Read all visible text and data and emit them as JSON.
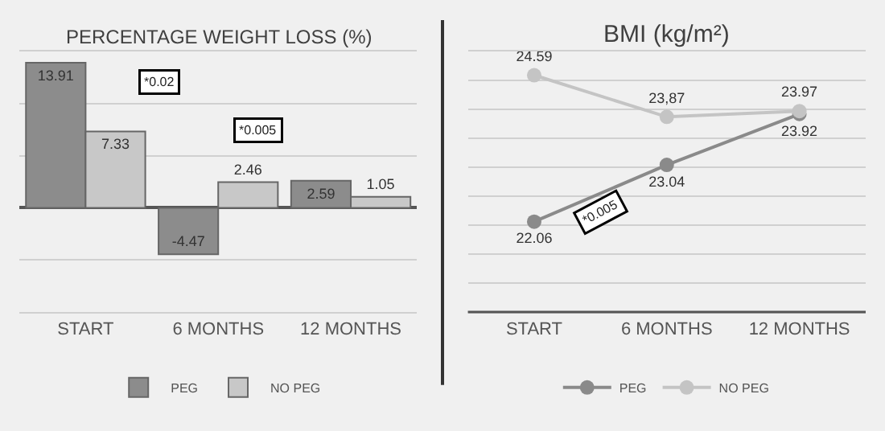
{
  "chart_data": [
    {
      "type": "bar",
      "title": "PERCENTAGE WEIGHT LOSS (%)",
      "categories": [
        "START",
        "6 MONTHS",
        "12 MONTHS"
      ],
      "series": [
        {
          "name": "PEG",
          "color": "#8c8c8c",
          "values": [
            13.91,
            -4.47,
            2.59
          ]
        },
        {
          "name": "NO PEG",
          "color": "#c8c8c8",
          "values": [
            7.33,
            2.46,
            1.05
          ]
        }
      ],
      "ylim": [
        -10,
        15
      ],
      "yticks": [
        {
          "value": -10,
          "label": null
        },
        {
          "value": -5,
          "label": null
        },
        {
          "value": 0,
          "label": null
        },
        {
          "value": 5,
          "label": null
        },
        {
          "value": 10,
          "label": null
        },
        {
          "value": 15,
          "label": null
        }
      ],
      "data_labels": true,
      "grid": "y",
      "legend": "bottom",
      "tick_labels": "x",
      "annotations": [
        "*0.02",
        "*0.005"
      ]
    },
    {
      "type": "line",
      "title": "BMI (kg/m²)",
      "categories": [
        "START",
        "6 MONTHS",
        "12 MONTHS"
      ],
      "series": [
        {
          "name": "PEG",
          "color": "#8a8a8a",
          "values": [
            22.06,
            23.04,
            23.92
          ],
          "value_labels": [
            "22.06",
            "23.04",
            "23.92"
          ]
        },
        {
          "name": "NO PEG",
          "color": "#c4c4c4",
          "values": [
            24.59,
            23.87,
            23.97
          ],
          "value_labels": [
            "24.59",
            "23,87",
            "23.97"
          ]
        }
      ],
      "ylim": [
        20.5,
        25
      ],
      "yticks": [
        {
          "value": 20.5,
          "label": null
        },
        {
          "value": 21,
          "label": null
        },
        {
          "value": 21.5,
          "label": null
        },
        {
          "value": 22,
          "label": null
        },
        {
          "value": 22.5,
          "label": null
        },
        {
          "value": 23,
          "label": null
        },
        {
          "value": 23.5,
          "label": null
        },
        {
          "value": 24,
          "label": null
        },
        {
          "value": 24.5,
          "label": null
        },
        {
          "value": 25,
          "label": null
        }
      ],
      "marker": "circle",
      "grid": "y",
      "legend": "bottom",
      "tick_labels": "x",
      "annotations": [
        "*0.005"
      ]
    }
  ]
}
